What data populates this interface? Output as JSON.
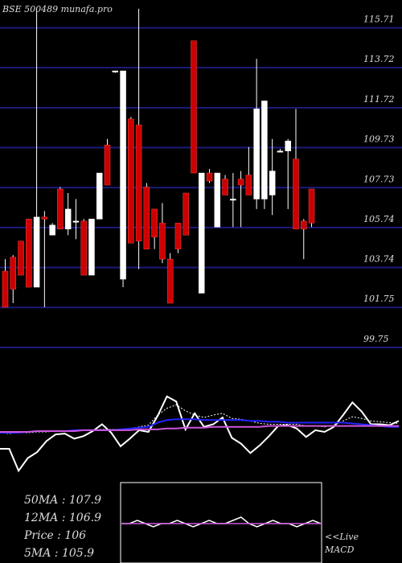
{
  "title": "BSE 500489 munafa.pro",
  "chart_data": [
    {
      "type": "candlestick",
      "ylim": [
        99.75,
        116.5
      ],
      "yticks": [
        115.71,
        113.72,
        111.72,
        109.73,
        107.73,
        105.74,
        103.74,
        101.75,
        99.75
      ],
      "ytick_labels": [
        "115.71",
        "113.72",
        "111.72",
        "109.73",
        "107.73",
        "105.74",
        "103.74",
        "101.75",
        "99.75"
      ],
      "candles": [
        {
          "o": 103.4,
          "h": 104.0,
          "l": 101.6,
          "c": 101.6
        },
        {
          "o": 104.1,
          "h": 104.2,
          "l": 101.8,
          "c": 102.5
        },
        {
          "o": 104.9,
          "h": 104.9,
          "l": 103.2,
          "c": 103.2
        },
        {
          "o": 106.0,
          "h": 106.0,
          "l": 102.6,
          "c": 102.6
        },
        {
          "o": 102.6,
          "h": 116.5,
          "l": 102.6,
          "c": 106.1
        },
        {
          "o": 106.1,
          "h": 106.4,
          "l": 101.6,
          "c": 106.0
        },
        {
          "o": 105.2,
          "h": 105.8,
          "l": 105.2,
          "c": 105.7
        },
        {
          "o": 107.5,
          "h": 107.6,
          "l": 105.5,
          "c": 105.5
        },
        {
          "o": 105.5,
          "h": 107.3,
          "l": 105.2,
          "c": 106.5
        },
        {
          "o": 105.9,
          "h": 107.0,
          "l": 105.0,
          "c": 105.9
        },
        {
          "o": 105.9,
          "h": 106.0,
          "l": 103.2,
          "c": 103.2
        },
        {
          "o": 103.2,
          "h": 106.0,
          "l": 103.2,
          "c": 106.0
        },
        {
          "o": 106.0,
          "h": 108.3,
          "l": 106.0,
          "c": 108.3
        },
        {
          "o": 109.7,
          "h": 110.0,
          "l": 107.7,
          "c": 107.7
        },
        {
          "o": 113.4,
          "h": 113.4,
          "l": 113.3,
          "c": 113.4
        },
        {
          "o": 103.0,
          "h": 113.4,
          "l": 102.6,
          "c": 113.4
        },
        {
          "o": 111.0,
          "h": 111.1,
          "l": 104.8,
          "c": 104.8
        },
        {
          "o": 110.7,
          "h": 116.5,
          "l": 103.5,
          "c": 104.9
        },
        {
          "o": 107.6,
          "h": 107.8,
          "l": 104.5,
          "c": 104.5
        },
        {
          "o": 106.5,
          "h": 106.5,
          "l": 104.5,
          "c": 105.1
        },
        {
          "o": 105.8,
          "h": 106.8,
          "l": 103.8,
          "c": 104.0
        },
        {
          "o": 104.0,
          "h": 104.3,
          "l": 101.8,
          "c": 101.8
        },
        {
          "o": 105.8,
          "h": 105.8,
          "l": 104.3,
          "c": 104.5
        },
        {
          "o": 107.3,
          "h": 107.3,
          "l": 105.2,
          "c": 105.2
        },
        {
          "o": 114.9,
          "h": 114.9,
          "l": 108.3,
          "c": 108.3
        },
        {
          "o": 102.3,
          "h": 108.3,
          "l": 102.3,
          "c": 108.3
        },
        {
          "o": 108.3,
          "h": 108.5,
          "l": 107.8,
          "c": 107.9
        },
        {
          "o": 105.6,
          "h": 108.3,
          "l": 105.6,
          "c": 108.3
        },
        {
          "o": 108.0,
          "h": 108.2,
          "l": 107.2,
          "c": 107.2
        },
        {
          "o": 107.0,
          "h": 108.3,
          "l": 105.6,
          "c": 107.0
        },
        {
          "o": 108.0,
          "h": 108.4,
          "l": 105.6,
          "c": 107.7
        },
        {
          "o": 108.2,
          "h": 109.6,
          "l": 107.2,
          "c": 107.2
        },
        {
          "o": 107.0,
          "h": 114.0,
          "l": 106.5,
          "c": 111.5
        },
        {
          "o": 107.0,
          "h": 111.9,
          "l": 106.5,
          "c": 111.9
        },
        {
          "o": 107.2,
          "h": 110.0,
          "l": 106.2,
          "c": 108.4
        },
        {
          "o": 109.4,
          "h": 109.5,
          "l": 109.4,
          "c": 109.4
        },
        {
          "o": 109.4,
          "h": 110.0,
          "l": 106.5,
          "c": 109.9
        },
        {
          "o": 109.0,
          "h": 111.5,
          "l": 105.5,
          "c": 105.5
        },
        {
          "o": 105.9,
          "h": 106.0,
          "l": 104.0,
          "c": 105.5
        },
        {
          "o": 107.5,
          "h": 107.5,
          "l": 105.6,
          "c": 105.8
        }
      ]
    },
    {
      "type": "line",
      "series": [
        {
          "color": "#ffffff",
          "values": [
            40,
            40,
            14,
            29,
            36,
            49,
            57,
            58,
            52,
            55,
            61,
            69,
            59,
            43,
            52,
            62,
            60,
            79,
            102,
            96,
            63,
            82,
            66,
            69,
            77,
            53,
            46,
            35,
            44,
            55,
            67,
            68,
            64,
            54,
            62,
            60,
            66,
            80,
            95,
            84,
            69,
            69,
            68,
            73
          ]
        },
        {
          "color": "#ffffff",
          "dash": "2,2",
          "values": [
            59,
            58,
            59,
            59,
            60,
            60,
            61,
            61,
            62,
            62,
            62,
            63,
            63,
            63,
            64,
            66,
            68,
            80,
            88,
            92,
            85,
            80,
            77,
            80,
            82,
            76,
            75,
            73,
            70,
            69,
            69,
            69,
            69,
            67,
            67,
            66,
            68,
            73,
            78,
            76,
            73,
            72,
            71,
            70
          ]
        },
        {
          "color": "#2222ff",
          "values": [
            59,
            59,
            59,
            60,
            61,
            61,
            61,
            61,
            62,
            62,
            62,
            62,
            62,
            63,
            64,
            65,
            66,
            71,
            74,
            75,
            75,
            75,
            74,
            74,
            74,
            74,
            74,
            73,
            73,
            72,
            72,
            71,
            71,
            71,
            71,
            71,
            71,
            71,
            70,
            69,
            68,
            67,
            66,
            66
          ]
        },
        {
          "color": "#cc55dd",
          "values": [
            60,
            60,
            60,
            60,
            61,
            61,
            61,
            61,
            61,
            62,
            62,
            62,
            62,
            62,
            62,
            63,
            63,
            63,
            64,
            64,
            65,
            65,
            65,
            66,
            66,
            66,
            66,
            66,
            66,
            67,
            67,
            67,
            67,
            67,
            67,
            67,
            67,
            67,
            67,
            67,
            67,
            67,
            67,
            67
          ]
        }
      ]
    },
    {
      "type": "line",
      "series": [
        {
          "color": "#ffffff",
          "values": [
            0,
            0,
            1,
            0,
            -1,
            0,
            0,
            1,
            0,
            -1,
            0,
            1,
            0,
            0,
            1,
            2,
            0,
            -1,
            0,
            1,
            0,
            0,
            -1,
            0,
            1,
            0
          ]
        },
        {
          "color": "#cc55dd",
          "values": [
            0,
            0,
            0,
            0,
            0,
            0,
            0,
            0,
            0,
            0,
            0,
            0,
            0,
            0,
            0,
            0,
            0,
            0,
            0,
            0,
            0,
            0,
            0,
            0,
            0,
            0
          ]
        }
      ]
    }
  ],
  "stats": [
    {
      "label": "50MA",
      "value": "107.9"
    },
    {
      "label": "12MA",
      "value": "106.9"
    },
    {
      "label": "Price ",
      "value": "106"
    },
    {
      "label": "5MA",
      "value": "105.9"
    }
  ],
  "macd": {
    "line1": "<<Live",
    "line2": "MACD"
  },
  "colors": {
    "bull": "#ffffff",
    "bear": "#cc0000",
    "grid": "#1b1b7a",
    "text": "#dddddd"
  }
}
